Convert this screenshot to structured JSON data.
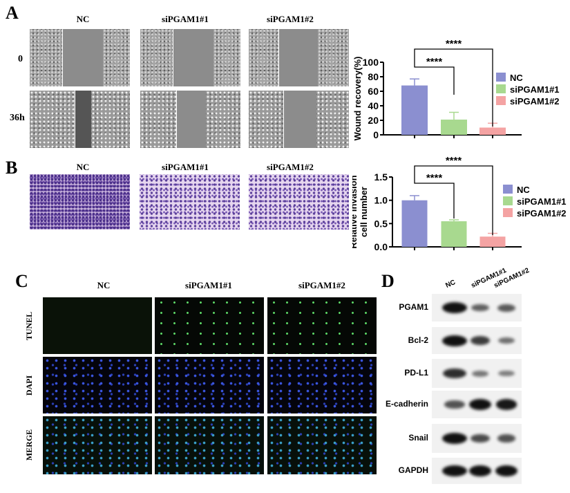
{
  "panels": {
    "A": {
      "label": "A",
      "columns": [
        "NC",
        "siPGAM1#1",
        "siPGAM1#2"
      ],
      "rows": [
        "0",
        "36h"
      ]
    },
    "B": {
      "label": "B",
      "columns": [
        "NC",
        "siPGAM1#1",
        "siPGAM1#2"
      ]
    },
    "C": {
      "label": "C",
      "columns": [
        "NC",
        "siPGAM1#1",
        "siPGAM1#2"
      ],
      "rows": [
        "TUNEL",
        "DAPI",
        "MERGE"
      ]
    },
    "D": {
      "label": "D",
      "lanes": [
        "NC",
        "siPGAM1#1",
        "siPGAM1#2"
      ],
      "proteins": [
        "PGAM1",
        "Bcl-2",
        "PD-L1",
        "E-cadherin",
        "Snail",
        "GAPDH"
      ],
      "band_intensity": [
        [
          1,
          0.45,
          0.5
        ],
        [
          1,
          0.7,
          0.35
        ],
        [
          0.8,
          0.3,
          0.25
        ],
        [
          0.55,
          1,
          0.95
        ],
        [
          1,
          0.6,
          0.55
        ],
        [
          1,
          1,
          1
        ]
      ]
    }
  },
  "chart_data": [
    {
      "type": "bar",
      "categories": [
        "NC",
        "siPGAM1#1",
        "siPGAM1#2"
      ],
      "values": [
        68,
        21,
        10
      ],
      "error": [
        9,
        10,
        6
      ],
      "ylabel": "Wound recovery(%)",
      "ylim": [
        0,
        100
      ],
      "yticks": [
        "0",
        "20",
        "40",
        "60",
        "80",
        "100"
      ],
      "legend": [
        "NC",
        "siPGAM1#1",
        "siPGAM1#2"
      ],
      "legend_position": "right",
      "significance": [
        {
          "pair": [
            "NC",
            "siPGAM1#1"
          ],
          "label": "****"
        },
        {
          "pair": [
            "NC",
            "siPGAM1#2"
          ],
          "label": "****"
        }
      ]
    },
    {
      "type": "bar",
      "categories": [
        "NC",
        "siPGAM1#1",
        "siPGAM1#2"
      ],
      "values": [
        1.0,
        0.55,
        0.22
      ],
      "error": [
        0.1,
        0.03,
        0.07
      ],
      "ylabel": [
        "Relative invasion",
        "cell number"
      ],
      "ylim": [
        0,
        1.5
      ],
      "yticks": [
        "0.0",
        "0.5",
        "1.0",
        "1.5"
      ],
      "legend": [
        "NC",
        "siPGAM1#1",
        "siPGAM1#2"
      ],
      "legend_position": "right",
      "significance": [
        {
          "pair": [
            "NC",
            "siPGAM1#1"
          ],
          "label": "****"
        },
        {
          "pair": [
            "NC",
            "siPGAM1#2"
          ],
          "label": "****"
        }
      ]
    }
  ],
  "colors": {
    "NC": "#8b8fd0",
    "siPGAM1#1": "#a8d98f",
    "siPGAM1#2": "#f4a3a3"
  }
}
